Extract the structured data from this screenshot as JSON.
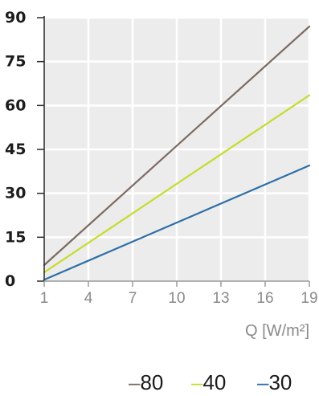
{
  "chart_data": {
    "type": "line",
    "xlabel": "Q [W/m²]",
    "ylabel": "",
    "title": "",
    "x_ticks": [
      1,
      4,
      7,
      10,
      13,
      16,
      19
    ],
    "y_ticks": [
      0,
      15,
      30,
      45,
      60,
      75,
      90
    ],
    "xlim": [
      1,
      19
    ],
    "ylim": [
      0,
      90
    ],
    "grid": true,
    "legend_position": "bottom-right",
    "series": [
      {
        "name": "80",
        "color": "#7d6a62",
        "x": [
          1,
          19
        ],
        "y": [
          5.5,
          87
        ]
      },
      {
        "name": "40",
        "color": "#c6dc2e",
        "x": [
          1,
          19
        ],
        "y": [
          3,
          63.5
        ]
      },
      {
        "name": "30",
        "color": "#2f6fa6",
        "x": [
          1,
          19
        ],
        "y": [
          0.5,
          39.5
        ]
      }
    ]
  },
  "legend": {
    "dash": "–",
    "items": [
      "80",
      "40",
      "30"
    ]
  }
}
